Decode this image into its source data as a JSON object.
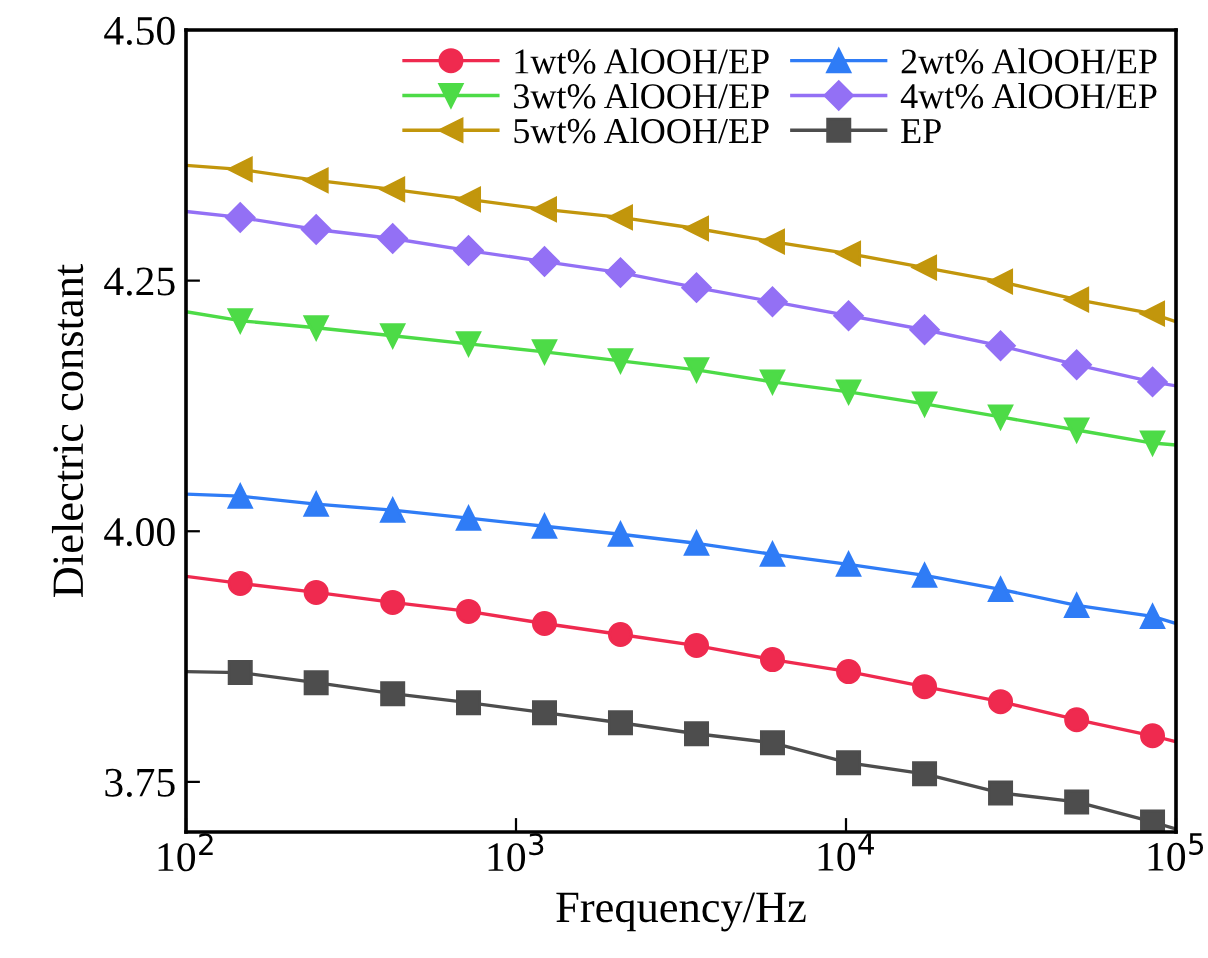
{
  "chart_data": {
    "type": "line",
    "xlabel": "Frequency/Hz",
    "ylabel": "Dielectric constant",
    "log": "x",
    "x": [
      100,
      146,
      248,
      423,
      718,
      1220,
      2073,
      3524,
      5987,
      10180,
      17300,
      29400,
      50000,
      84900,
      100000
    ],
    "series": [
      {
        "name": "1wt% AlOOH/EP",
        "color": "#ef2a4f",
        "marker": "circle",
        "values": [
          3.955,
          3.948,
          3.939,
          3.929,
          3.92,
          3.908,
          3.897,
          3.886,
          3.872,
          3.86,
          3.845,
          3.83,
          3.812,
          3.796,
          3.79
        ]
      },
      {
        "name": "2wt% AlOOH/EP",
        "color": "#2f7cf6",
        "marker": "triangle",
        "values": [
          4.037,
          4.035,
          4.027,
          4.021,
          4.013,
          4.005,
          3.997,
          3.988,
          3.977,
          3.967,
          3.956,
          3.942,
          3.926,
          3.915,
          3.908
        ]
      },
      {
        "name": "3wt% AlOOH/EP",
        "color": "#4ddb47",
        "marker": "triangle_down",
        "values": [
          4.219,
          4.21,
          4.203,
          4.195,
          4.187,
          4.179,
          4.17,
          4.161,
          4.149,
          4.139,
          4.127,
          4.114,
          4.101,
          4.088,
          4.086
        ]
      },
      {
        "name": "4wt% AlOOH/EP",
        "color": "#9370f5",
        "marker": "diamond",
        "values": [
          4.319,
          4.313,
          4.301,
          4.292,
          4.28,
          4.269,
          4.258,
          4.243,
          4.229,
          4.215,
          4.201,
          4.185,
          4.166,
          4.149,
          4.145
        ]
      },
      {
        "name": "5wt% AlOOH/EP",
        "color": "#c2960c",
        "marker": "triangle_left",
        "values": [
          4.365,
          4.361,
          4.35,
          4.341,
          4.331,
          4.321,
          4.313,
          4.302,
          4.289,
          4.277,
          4.263,
          4.249,
          4.231,
          4.217,
          4.209
        ]
      },
      {
        "name": "EP",
        "color": "#4d4d4d",
        "marker": "square",
        "values": [
          3.86,
          3.859,
          3.849,
          3.838,
          3.829,
          3.819,
          3.809,
          3.798,
          3.789,
          3.769,
          3.758,
          3.739,
          3.73,
          3.71,
          3.703
        ]
      }
    ],
    "xlim": [
      100,
      100000
    ],
    "xticks": [
      {
        "value": 100,
        "label": "10$^{2}$"
      },
      {
        "value": 1000,
        "label": "10$^{3}$"
      },
      {
        "value": 10000,
        "label": "10$^{4}$"
      },
      {
        "value": 100000,
        "label": "10$^{5}$"
      }
    ],
    "ylim": [
      3.7,
      4.5
    ],
    "yticks": [
      {
        "value": 3.75,
        "label": "3.75"
      },
      {
        "value": 4.0,
        "label": "4.00"
      },
      {
        "value": 4.25,
        "label": "4.25"
      },
      {
        "value": 4.5,
        "label": "4.50"
      }
    ],
    "grid": false,
    "legend": "top right",
    "line_style": "solid"
  }
}
